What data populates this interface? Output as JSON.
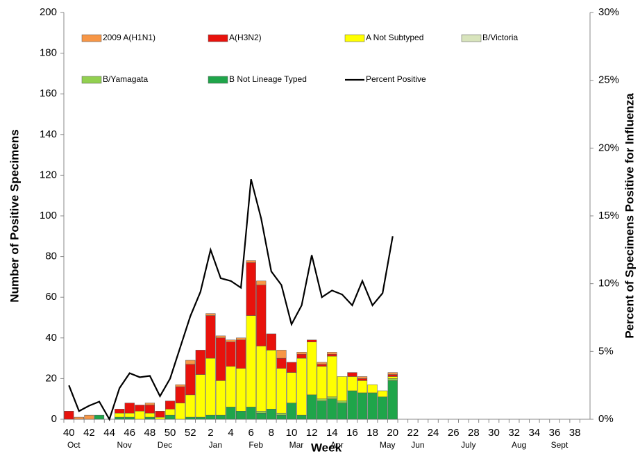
{
  "chart_data": {
    "type": "bar",
    "x_label": "Week",
    "y_label": "Number of Positive Specimens",
    "y2_label": "Percent of Specimens Positive for Influenza",
    "categories": [
      "40",
      null,
      "42",
      null,
      "44",
      null,
      "46",
      null,
      "48",
      null,
      "50",
      null,
      "52",
      null,
      "2",
      null,
      "4",
      null,
      "6",
      null,
      "8",
      null,
      "10",
      null,
      "12",
      null,
      "14",
      null,
      "16",
      null,
      "18",
      null,
      "20",
      null,
      "22",
      null,
      "24",
      null,
      "26",
      null,
      "28",
      null,
      "30",
      null,
      "32",
      null,
      "34",
      null,
      "36",
      null,
      "38",
      null
    ],
    "months": [
      "Oct",
      null,
      null,
      null,
      null,
      "Nov",
      null,
      null,
      null,
      "Dec",
      null,
      null,
      null,
      null,
      "Jan",
      null,
      null,
      null,
      "Feb",
      null,
      null,
      null,
      "Mar",
      null,
      null,
      null,
      "Apr",
      null,
      null,
      null,
      null,
      "May",
      null,
      null,
      "Jun",
      null,
      null,
      null,
      null,
      "July",
      null,
      null,
      null,
      null,
      "Aug",
      null,
      null,
      null,
      "Sept",
      null,
      null,
      null
    ],
    "ylim": [
      0,
      200
    ],
    "yticks": [
      0,
      20,
      40,
      60,
      80,
      100,
      120,
      140,
      160,
      180,
      200
    ],
    "y2lim": [
      0,
      30
    ],
    "y2ticks": [
      {
        "value": 0,
        "label": "0%"
      },
      {
        "value": 5,
        "label": "5%"
      },
      {
        "value": 10,
        "label": "10%"
      },
      {
        "value": 15,
        "label": "15%"
      },
      {
        "value": 20,
        "label": "20%"
      },
      {
        "value": 25,
        "label": "25%"
      },
      {
        "value": 30,
        "label": "30%"
      }
    ],
    "stacked": true,
    "legend": "top",
    "series": [
      {
        "name": "2009 A(H1N1)",
        "color": "#f79646",
        "values": [
          0,
          1,
          2,
          0,
          0,
          0,
          0,
          0,
          1,
          0,
          0,
          1,
          2,
          0,
          1,
          1,
          1,
          1,
          1,
          2,
          0,
          4,
          0,
          1,
          0,
          1,
          1,
          0,
          0,
          1,
          0,
          0,
          1,
          null,
          null,
          null,
          null,
          null,
          null,
          null,
          null,
          null,
          null,
          null,
          null,
          null,
          null,
          null,
          null,
          null,
          null,
          null
        ]
      },
      {
        "name": "A(H3N2)",
        "color": "#e8120c",
        "values": [
          4,
          0,
          0,
          0,
          0,
          2,
          5,
          3,
          4,
          3,
          4,
          8,
          15,
          12,
          21,
          21,
          12,
          14,
          26,
          30,
          8,
          5,
          5,
          2,
          1,
          1,
          1,
          0,
          2,
          1,
          0,
          0,
          1,
          null,
          null,
          null,
          null,
          null,
          null,
          null,
          null,
          null,
          null,
          null,
          null,
          null,
          null,
          null,
          null,
          null,
          null,
          null
        ]
      },
      {
        "name": "A Not Subtyped",
        "color": "#ffff00",
        "values": [
          0,
          0,
          0,
          0,
          0,
          2,
          2,
          4,
          2,
          1,
          3,
          8,
          11,
          21,
          28,
          17,
          20,
          21,
          45,
          32,
          29,
          22,
          15,
          28,
          26,
          16,
          20,
          12,
          7,
          6,
          4,
          3,
          1,
          null,
          null,
          null,
          null,
          null,
          null,
          null,
          null,
          null,
          null,
          null,
          null,
          null,
          null,
          null,
          null,
          null,
          null,
          null
        ]
      },
      {
        "name": "B/Victoria",
        "color": "#d8e4bc",
        "values": [
          0,
          0,
          0,
          0,
          0,
          0,
          0,
          0,
          0,
          0,
          0,
          0,
          0,
          0,
          0,
          0,
          0,
          0,
          0,
          0,
          0,
          0,
          0,
          0,
          0,
          0,
          0,
          0,
          0,
          0,
          0,
          0,
          0,
          null,
          null,
          null,
          null,
          null,
          null,
          null,
          null,
          null,
          null,
          null,
          null,
          null,
          null,
          null,
          null,
          null,
          null,
          null
        ]
      },
      {
        "name": "B/Yamagata",
        "color": "#92d050",
        "values": [
          0,
          0,
          0,
          0,
          0,
          0,
          0,
          0,
          0,
          0,
          0,
          0,
          0,
          0,
          0,
          0,
          0,
          0,
          0,
          1,
          0,
          1,
          0,
          0,
          0,
          1,
          1,
          1,
          0,
          0,
          0,
          0,
          1,
          null,
          null,
          null,
          null,
          null,
          null,
          null,
          null,
          null,
          null,
          null,
          null,
          null,
          null,
          null,
          null,
          null,
          null,
          null
        ]
      },
      {
        "name": "B Not Lineage Typed",
        "color": "#1fa54a",
        "values": [
          0,
          0,
          0,
          2,
          0,
          1,
          1,
          0,
          1,
          0,
          2,
          0,
          1,
          1,
          2,
          2,
          6,
          4,
          6,
          3,
          5,
          2,
          8,
          2,
          12,
          9,
          10,
          8,
          14,
          13,
          13,
          11,
          19,
          null,
          null,
          null,
          null,
          null,
          null,
          null,
          null,
          null,
          null,
          null,
          null,
          null,
          null,
          null,
          null,
          null,
          null,
          null
        ]
      },
      {
        "name": "Percent Positive",
        "type": "line",
        "axis": "y2",
        "color": "#000000",
        "values": [
          2.5,
          0.6,
          1.0,
          1.3,
          0,
          2.3,
          3.4,
          3.1,
          3.2,
          1.7,
          3.0,
          5.3,
          7.6,
          9.4,
          12.5,
          10.4,
          10.2,
          9.7,
          17.7,
          14.8,
          10.9,
          9.9,
          7.0,
          8.4,
          12.1,
          9.0,
          9.5,
          9.2,
          8.4,
          10.2,
          8.4,
          9.3,
          13.5,
          null,
          null,
          null,
          null,
          null,
          null,
          null,
          null,
          null,
          null,
          null,
          null,
          null,
          null,
          null,
          null,
          null,
          null,
          null
        ]
      }
    ]
  }
}
